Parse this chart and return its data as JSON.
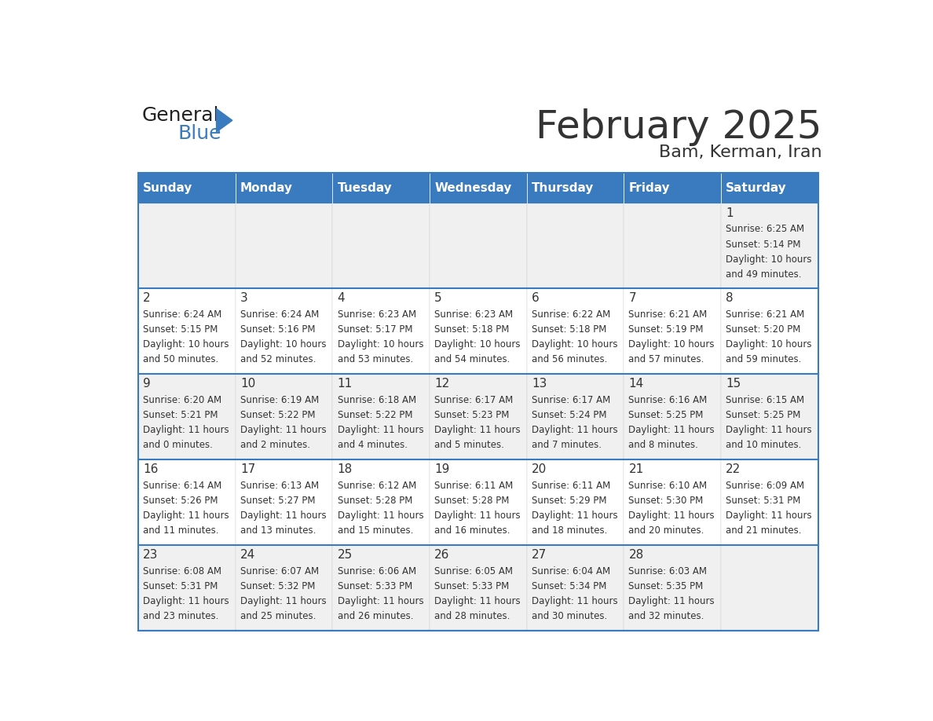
{
  "title": "February 2025",
  "subtitle": "Bam, Kerman, Iran",
  "header_bg": "#3a7bbf",
  "header_text_color": "#ffffff",
  "day_names": [
    "Sunday",
    "Monday",
    "Tuesday",
    "Wednesday",
    "Thursday",
    "Friday",
    "Saturday"
  ],
  "row_bg_odd": "#f0f0f0",
  "row_bg_even": "#ffffff",
  "cell_border_color": "#3a7bbf",
  "text_color": "#333333",
  "num_color": "#333333",
  "days": [
    {
      "day": 1,
      "col": 6,
      "row": 0,
      "sunrise": "6:25 AM",
      "sunset": "5:14 PM",
      "daylight": "10 hours and 49 minutes."
    },
    {
      "day": 2,
      "col": 0,
      "row": 1,
      "sunrise": "6:24 AM",
      "sunset": "5:15 PM",
      "daylight": "10 hours and 50 minutes."
    },
    {
      "day": 3,
      "col": 1,
      "row": 1,
      "sunrise": "6:24 AM",
      "sunset": "5:16 PM",
      "daylight": "10 hours and 52 minutes."
    },
    {
      "day": 4,
      "col": 2,
      "row": 1,
      "sunrise": "6:23 AM",
      "sunset": "5:17 PM",
      "daylight": "10 hours and 53 minutes."
    },
    {
      "day": 5,
      "col": 3,
      "row": 1,
      "sunrise": "6:23 AM",
      "sunset": "5:18 PM",
      "daylight": "10 hours and 54 minutes."
    },
    {
      "day": 6,
      "col": 4,
      "row": 1,
      "sunrise": "6:22 AM",
      "sunset": "5:18 PM",
      "daylight": "10 hours and 56 minutes."
    },
    {
      "day": 7,
      "col": 5,
      "row": 1,
      "sunrise": "6:21 AM",
      "sunset": "5:19 PM",
      "daylight": "10 hours and 57 minutes."
    },
    {
      "day": 8,
      "col": 6,
      "row": 1,
      "sunrise": "6:21 AM",
      "sunset": "5:20 PM",
      "daylight": "10 hours and 59 minutes."
    },
    {
      "day": 9,
      "col": 0,
      "row": 2,
      "sunrise": "6:20 AM",
      "sunset": "5:21 PM",
      "daylight": "11 hours and 0 minutes."
    },
    {
      "day": 10,
      "col": 1,
      "row": 2,
      "sunrise": "6:19 AM",
      "sunset": "5:22 PM",
      "daylight": "11 hours and 2 minutes."
    },
    {
      "day": 11,
      "col": 2,
      "row": 2,
      "sunrise": "6:18 AM",
      "sunset": "5:22 PM",
      "daylight": "11 hours and 4 minutes."
    },
    {
      "day": 12,
      "col": 3,
      "row": 2,
      "sunrise": "6:17 AM",
      "sunset": "5:23 PM",
      "daylight": "11 hours and 5 minutes."
    },
    {
      "day": 13,
      "col": 4,
      "row": 2,
      "sunrise": "6:17 AM",
      "sunset": "5:24 PM",
      "daylight": "11 hours and 7 minutes."
    },
    {
      "day": 14,
      "col": 5,
      "row": 2,
      "sunrise": "6:16 AM",
      "sunset": "5:25 PM",
      "daylight": "11 hours and 8 minutes."
    },
    {
      "day": 15,
      "col": 6,
      "row": 2,
      "sunrise": "6:15 AM",
      "sunset": "5:25 PM",
      "daylight": "11 hours and 10 minutes."
    },
    {
      "day": 16,
      "col": 0,
      "row": 3,
      "sunrise": "6:14 AM",
      "sunset": "5:26 PM",
      "daylight": "11 hours and 11 minutes."
    },
    {
      "day": 17,
      "col": 1,
      "row": 3,
      "sunrise": "6:13 AM",
      "sunset": "5:27 PM",
      "daylight": "11 hours and 13 minutes."
    },
    {
      "day": 18,
      "col": 2,
      "row": 3,
      "sunrise": "6:12 AM",
      "sunset": "5:28 PM",
      "daylight": "11 hours and 15 minutes."
    },
    {
      "day": 19,
      "col": 3,
      "row": 3,
      "sunrise": "6:11 AM",
      "sunset": "5:28 PM",
      "daylight": "11 hours and 16 minutes."
    },
    {
      "day": 20,
      "col": 4,
      "row": 3,
      "sunrise": "6:11 AM",
      "sunset": "5:29 PM",
      "daylight": "11 hours and 18 minutes."
    },
    {
      "day": 21,
      "col": 5,
      "row": 3,
      "sunrise": "6:10 AM",
      "sunset": "5:30 PM",
      "daylight": "11 hours and 20 minutes."
    },
    {
      "day": 22,
      "col": 6,
      "row": 3,
      "sunrise": "6:09 AM",
      "sunset": "5:31 PM",
      "daylight": "11 hours and 21 minutes."
    },
    {
      "day": 23,
      "col": 0,
      "row": 4,
      "sunrise": "6:08 AM",
      "sunset": "5:31 PM",
      "daylight": "11 hours and 23 minutes."
    },
    {
      "day": 24,
      "col": 1,
      "row": 4,
      "sunrise": "6:07 AM",
      "sunset": "5:32 PM",
      "daylight": "11 hours and 25 minutes."
    },
    {
      "day": 25,
      "col": 2,
      "row": 4,
      "sunrise": "6:06 AM",
      "sunset": "5:33 PM",
      "daylight": "11 hours and 26 minutes."
    },
    {
      "day": 26,
      "col": 3,
      "row": 4,
      "sunrise": "6:05 AM",
      "sunset": "5:33 PM",
      "daylight": "11 hours and 28 minutes."
    },
    {
      "day": 27,
      "col": 4,
      "row": 4,
      "sunrise": "6:04 AM",
      "sunset": "5:34 PM",
      "daylight": "11 hours and 30 minutes."
    },
    {
      "day": 28,
      "col": 5,
      "row": 4,
      "sunrise": "6:03 AM",
      "sunset": "5:35 PM",
      "daylight": "11 hours and 32 minutes."
    }
  ],
  "num_rows": 5,
  "num_cols": 7,
  "logo_general_color": "#222222",
  "logo_blue_color": "#3a7bbf",
  "logo_triangle_color": "#3a7bbf"
}
